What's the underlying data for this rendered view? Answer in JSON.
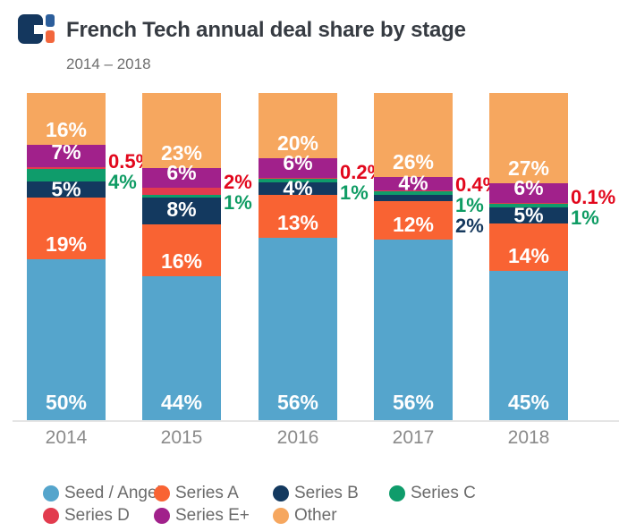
{
  "header": {
    "title": "French Tech annual deal share by stage",
    "subtitle": "2014 – 2018"
  },
  "chart_data": {
    "type": "bar",
    "variant": "stacked-100-percent",
    "title": "French Tech annual deal share by stage",
    "subtitle": "2014 – 2018",
    "unit": "%",
    "grid": false,
    "legend_position": "bottom",
    "categories": [
      "2014",
      "2015",
      "2016",
      "2017",
      "2018"
    ],
    "series": [
      {
        "name": "Seed / Angel",
        "color": "#55A5CC",
        "values": [
          50,
          44,
          56,
          56,
          45
        ]
      },
      {
        "name": "Series A",
        "color": "#F96333",
        "values": [
          19,
          16,
          13,
          12,
          14
        ]
      },
      {
        "name": "Series B",
        "color": "#13395F",
        "values": [
          5,
          8,
          4,
          2,
          5
        ],
        "outside_label_years": [
          "2017"
        ],
        "label_color": "#16395E"
      },
      {
        "name": "Series C",
        "color": "#0F9C6B",
        "values": [
          4,
          1,
          1,
          1,
          1
        ],
        "outside_label_years": [
          "2014",
          "2015",
          "2016",
          "2017",
          "2018"
        ],
        "label_color": "#0F9C64"
      },
      {
        "name": "Series D",
        "color": "#E23B4E",
        "values": [
          0.5,
          2,
          0.2,
          0.4,
          0.1
        ],
        "outside_label_years": [
          "2014",
          "2015",
          "2016",
          "2017",
          "2018"
        ],
        "label_color": "#E2071C"
      },
      {
        "name": "Series E+",
        "color": "#A1218B",
        "values": [
          7,
          6,
          6,
          4,
          6
        ]
      },
      {
        "name": "Other",
        "color": "#F6A75F",
        "values": [
          16,
          23,
          20,
          26,
          27
        ]
      }
    ],
    "stack_order_top_to_bottom": [
      "Other",
      "Series E+",
      "Series D",
      "Series C",
      "Series B",
      "Series A",
      "Seed / Angel"
    ]
  },
  "legend": {
    "rows": [
      [
        "Seed / Angel",
        "Series A",
        "Series B",
        "Series C"
      ],
      [
        "Series D",
        "Series E+",
        "Other"
      ]
    ]
  }
}
